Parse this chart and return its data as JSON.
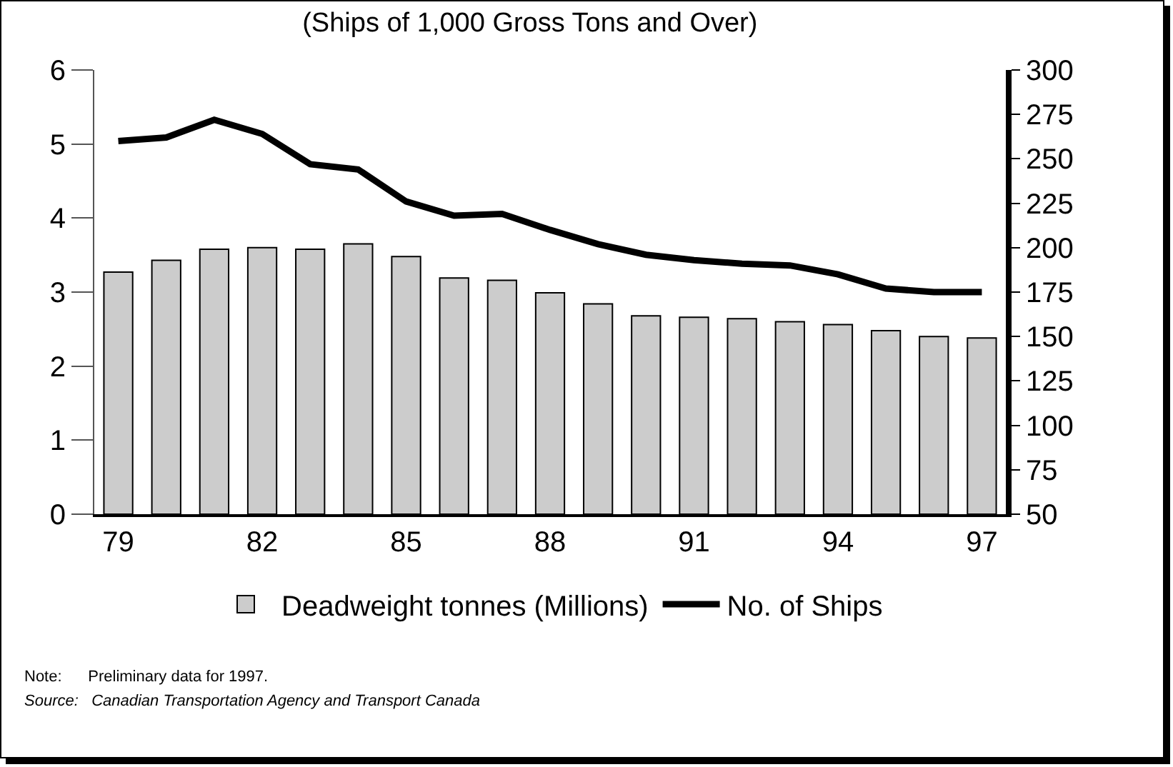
{
  "chart_data": {
    "type": "bar",
    "title": "(Ships of 1,000 Gross Tons and Over)",
    "categories": [
      "79",
      null,
      null,
      "82",
      null,
      null,
      "85",
      null,
      null,
      "88",
      null,
      null,
      "91",
      null,
      null,
      "94",
      null,
      null,
      "97"
    ],
    "series": [
      {
        "name": "Deadweight tonnes (Millions)",
        "color": "#cccccc",
        "values": [
          3.27,
          3.43,
          3.58,
          3.6,
          3.58,
          3.65,
          3.48,
          3.19,
          3.16,
          2.99,
          2.84,
          2.68,
          2.66,
          2.64,
          2.6,
          2.56,
          2.48,
          2.4,
          2.38
        ]
      },
      {
        "name": "No. of Ships",
        "type": "line",
        "axis": "y2",
        "color": "#000000",
        "values": [
          260,
          262,
          272,
          264,
          247,
          244,
          226,
          218,
          219,
          210,
          202,
          196,
          193,
          191,
          190,
          185,
          177,
          175,
          175
        ]
      }
    ],
    "ylim": [
      0,
      6
    ],
    "yticks": [
      0,
      1,
      2,
      3,
      4,
      5,
      6
    ],
    "y2lim": [
      50,
      300
    ],
    "y2ticks": [
      50,
      75,
      100,
      125,
      150,
      175,
      200,
      225,
      250,
      275,
      300
    ],
    "grid": false,
    "legend": "bottom",
    "marker": "none",
    "line_style": "solid",
    "annotations": [
      "Note:      Preliminary data for 1997.",
      "Source:   Canadian Transportation Agency and Transport Canada"
    ]
  }
}
